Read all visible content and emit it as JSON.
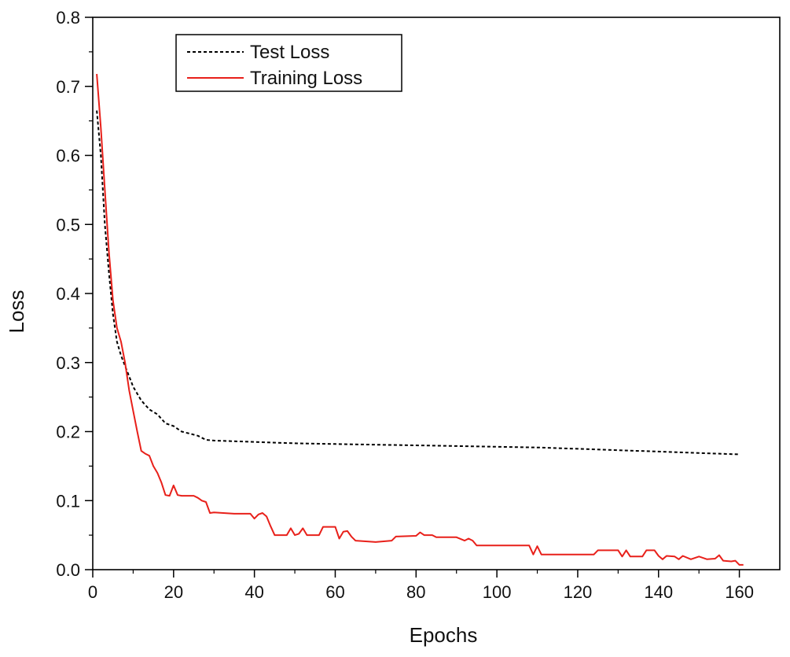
{
  "chart_data": {
    "type": "line",
    "title": "",
    "xlabel": "Epochs",
    "ylabel": "Loss",
    "xlim": [
      0,
      170
    ],
    "ylim": [
      0,
      0.8
    ],
    "x_ticks": [
      0,
      20,
      40,
      60,
      80,
      100,
      120,
      140,
      160
    ],
    "y_ticks": [
      "0.0",
      "0.1",
      "0.2",
      "0.3",
      "0.4",
      "0.5",
      "0.6",
      "0.7",
      "0.8"
    ],
    "grid": false,
    "legend_position": "top-left",
    "series": [
      {
        "name": "Test Loss",
        "color": "#000000",
        "style": "dashed",
        "points": [
          [
            1,
            0.665
          ],
          [
            2,
            0.6
          ],
          [
            3,
            0.5
          ],
          [
            4,
            0.43
          ],
          [
            5,
            0.37
          ],
          [
            6,
            0.33
          ],
          [
            7,
            0.31
          ],
          [
            8,
            0.295
          ],
          [
            9,
            0.28
          ],
          [
            10,
            0.265
          ],
          [
            12,
            0.245
          ],
          [
            14,
            0.232
          ],
          [
            16,
            0.225
          ],
          [
            18,
            0.212
          ],
          [
            20,
            0.208
          ],
          [
            22,
            0.2
          ],
          [
            24,
            0.197
          ],
          [
            26,
            0.194
          ],
          [
            28,
            0.188
          ],
          [
            30,
            0.187
          ],
          [
            40,
            0.185
          ],
          [
            50,
            0.183
          ],
          [
            60,
            0.182
          ],
          [
            70,
            0.181
          ],
          [
            80,
            0.18
          ],
          [
            90,
            0.179
          ],
          [
            100,
            0.178
          ],
          [
            110,
            0.177
          ],
          [
            120,
            0.175
          ],
          [
            130,
            0.173
          ],
          [
            140,
            0.171
          ],
          [
            150,
            0.169
          ],
          [
            160,
            0.167
          ]
        ]
      },
      {
        "name": "Training Loss",
        "color": "#e8201a",
        "style": "solid",
        "points": [
          [
            1,
            0.718
          ],
          [
            2,
            0.64
          ],
          [
            3,
            0.55
          ],
          [
            4,
            0.46
          ],
          [
            5,
            0.39
          ],
          [
            6,
            0.35
          ],
          [
            7,
            0.33
          ],
          [
            8,
            0.3
          ],
          [
            9,
            0.26
          ],
          [
            10,
            0.23
          ],
          [
            11,
            0.2
          ],
          [
            12,
            0.172
          ],
          [
            13,
            0.168
          ],
          [
            14,
            0.165
          ],
          [
            15,
            0.15
          ],
          [
            16,
            0.14
          ],
          [
            17,
            0.126
          ],
          [
            18,
            0.108
          ],
          [
            19,
            0.107
          ],
          [
            20,
            0.122
          ],
          [
            21,
            0.108
          ],
          [
            22,
            0.107
          ],
          [
            25,
            0.107
          ],
          [
            26,
            0.104
          ],
          [
            27,
            0.1
          ],
          [
            28,
            0.098
          ],
          [
            29,
            0.082
          ],
          [
            30,
            0.083
          ],
          [
            35,
            0.081
          ],
          [
            39,
            0.081
          ],
          [
            40,
            0.074
          ],
          [
            41,
            0.08
          ],
          [
            42,
            0.082
          ],
          [
            43,
            0.077
          ],
          [
            44,
            0.063
          ],
          [
            45,
            0.05
          ],
          [
            46,
            0.05
          ],
          [
            48,
            0.05
          ],
          [
            49,
            0.06
          ],
          [
            50,
            0.05
          ],
          [
            51,
            0.052
          ],
          [
            52,
            0.06
          ],
          [
            53,
            0.05
          ],
          [
            56,
            0.05
          ],
          [
            57,
            0.062
          ],
          [
            60,
            0.062
          ],
          [
            61,
            0.045
          ],
          [
            62,
            0.055
          ],
          [
            63,
            0.056
          ],
          [
            64,
            0.048
          ],
          [
            65,
            0.042
          ],
          [
            70,
            0.04
          ],
          [
            74,
            0.042
          ],
          [
            75,
            0.048
          ],
          [
            80,
            0.049
          ],
          [
            81,
            0.054
          ],
          [
            82,
            0.05
          ],
          [
            84,
            0.05
          ],
          [
            85,
            0.047
          ],
          [
            90,
            0.047
          ],
          [
            92,
            0.042
          ],
          [
            93,
            0.045
          ],
          [
            94,
            0.042
          ],
          [
            95,
            0.035
          ],
          [
            100,
            0.035
          ],
          [
            108,
            0.035
          ],
          [
            109,
            0.022
          ],
          [
            110,
            0.034
          ],
          [
            111,
            0.022
          ],
          [
            120,
            0.022
          ],
          [
            124,
            0.022
          ],
          [
            125,
            0.028
          ],
          [
            130,
            0.028
          ],
          [
            131,
            0.019
          ],
          [
            132,
            0.028
          ],
          [
            133,
            0.019
          ],
          [
            136,
            0.019
          ],
          [
            137,
            0.028
          ],
          [
            139,
            0.028
          ],
          [
            140,
            0.02
          ],
          [
            141,
            0.015
          ],
          [
            142,
            0.02
          ],
          [
            144,
            0.019
          ],
          [
            145,
            0.015
          ],
          [
            146,
            0.02
          ],
          [
            148,
            0.015
          ],
          [
            150,
            0.019
          ],
          [
            152,
            0.015
          ],
          [
            154,
            0.016
          ],
          [
            155,
            0.021
          ],
          [
            156,
            0.013
          ],
          [
            158,
            0.012
          ],
          [
            159,
            0.013
          ],
          [
            160,
            0.007
          ],
          [
            161,
            0.007
          ]
        ]
      }
    ]
  }
}
